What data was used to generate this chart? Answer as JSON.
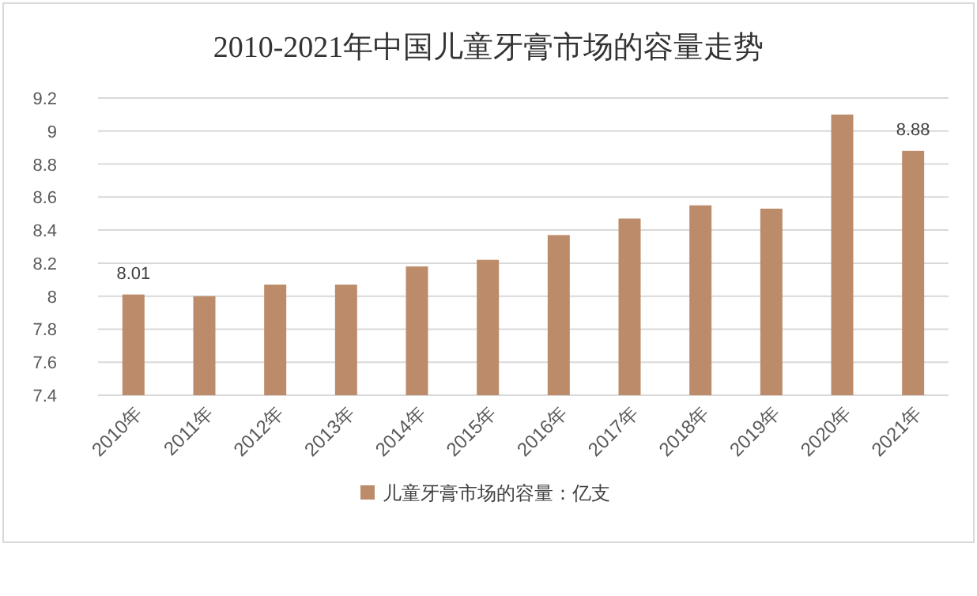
{
  "chart_data": {
    "type": "bar",
    "title": "2010-2021年中国儿童牙膏市场的容量走势",
    "categories": [
      "2010年",
      "2011年",
      "2012年",
      "2013年",
      "2014年",
      "2015年",
      "2016年",
      "2017年",
      "2018年",
      "2019年",
      "2020年",
      "2021年"
    ],
    "series": [
      {
        "name": "儿童牙膏市场的容量：亿支",
        "color": "#bc8c6a",
        "values": [
          8.01,
          8.0,
          8.07,
          8.07,
          8.18,
          8.22,
          8.37,
          8.47,
          8.55,
          8.53,
          9.1,
          8.88
        ],
        "value_labels": [
          "8.01",
          null,
          null,
          null,
          null,
          null,
          null,
          null,
          null,
          null,
          null,
          "8.88"
        ]
      }
    ],
    "ylim": [
      7.4,
      9.2
    ],
    "yticks": [
      7.4,
      7.6,
      7.8,
      8,
      8.2,
      8.4,
      8.6,
      8.8,
      9,
      9.2
    ],
    "grid": "y",
    "legend": "bottom"
  }
}
